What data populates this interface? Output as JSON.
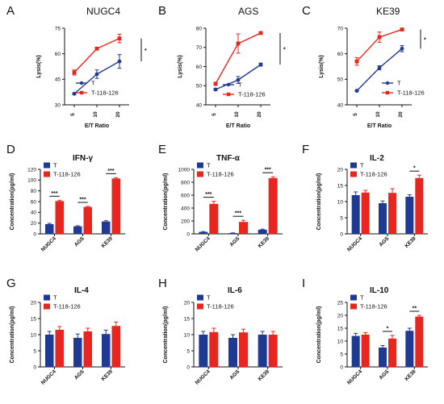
{
  "colors": {
    "T": "#1f3a93",
    "T118": "#e8261f",
    "axis": "#111111"
  },
  "chart_data": [
    {
      "panel": "A",
      "type": "line",
      "title": "NUGC4",
      "ylabel": "Lysis(%)",
      "xlabel": "E/T Ratio",
      "x": [
        "5",
        "10",
        "20"
      ],
      "ylim": [
        30,
        75
      ],
      "yticks": [
        30,
        45,
        60,
        75
      ],
      "series": [
        {
          "name": "T",
          "color": "T",
          "values": [
            36.5,
            48,
            55.5
          ],
          "errors": [
            0.5,
            2.5,
            4
          ]
        },
        {
          "name": "T-118-126",
          "color": "T118",
          "values": [
            49,
            63,
            69
          ],
          "errors": [
            1.5,
            0.8,
            2.5
          ]
        }
      ],
      "sig": [
        {
          "label": "*",
          "between_index": 2
        }
      ],
      "legend": "bottom-right"
    },
    {
      "panel": "B",
      "type": "line",
      "title": "AGS",
      "ylabel": "Lysis(%)",
      "xlabel": "E/T Ratio",
      "x": [
        "5",
        "10",
        "20"
      ],
      "ylim": [
        40,
        80
      ],
      "yticks": [
        40,
        50,
        60,
        70,
        80
      ],
      "series": [
        {
          "name": "T",
          "color": "T",
          "values": [
            48,
            53,
            61
          ],
          "errors": [
            0.5,
            1.8,
            0.8
          ]
        },
        {
          "name": "T-118-126",
          "color": "T118",
          "values": [
            51,
            72,
            77.5
          ],
          "errors": [
            0.8,
            5,
            0.5
          ]
        }
      ],
      "sig": [
        {
          "label": "*",
          "between_index": 2
        }
      ],
      "legend": "bottom-right"
    },
    {
      "panel": "C",
      "type": "line",
      "title": "KE39",
      "ylabel": "Lysis(%)",
      "xlabel": "E/T Ratio",
      "x": [
        "5",
        "10",
        "20"
      ],
      "ylim": [
        40,
        70
      ],
      "yticks": [
        40,
        50,
        60,
        70
      ],
      "series": [
        {
          "name": "T",
          "color": "T",
          "values": [
            45.5,
            54.5,
            62
          ],
          "errors": [
            0.3,
            0.8,
            1.2
          ]
        },
        {
          "name": "T-118-126",
          "color": "T118",
          "values": [
            57,
            66.5,
            69.5
          ],
          "errors": [
            1.5,
            2,
            0.5
          ]
        }
      ],
      "sig": [
        {
          "label": "*",
          "between_index": 2
        }
      ],
      "legend": "bottom-right"
    },
    {
      "panel": "D",
      "type": "bar",
      "title": "IFN-γ",
      "ylabel": "Concentration(pg/ml)",
      "categories": [
        "NUGC4",
        "AGS",
        "KE39"
      ],
      "ylim": [
        0,
        120
      ],
      "yticks": [
        0,
        20,
        40,
        60,
        80,
        100,
        120
      ],
      "series": [
        {
          "name": "T",
          "color": "T",
          "values": [
            18,
            14,
            23
          ],
          "errors": [
            1.5,
            1,
            1.5
          ]
        },
        {
          "name": "T-118-126",
          "color": "T118",
          "values": [
            61,
            50,
            103
          ],
          "errors": [
            1.5,
            1,
            1.5
          ]
        }
      ],
      "sig": [
        "***",
        "***",
        "***"
      ],
      "legend": "top-left"
    },
    {
      "panel": "E",
      "type": "bar",
      "title": "TNF-α",
      "ylabel": "Concentration(pg/ml)",
      "categories": [
        "NUGC4",
        "AGS",
        "KE39"
      ],
      "ylim": [
        0,
        1000
      ],
      "yticks": [
        0,
        200,
        400,
        600,
        800,
        1000
      ],
      "series": [
        {
          "name": "T",
          "color": "T",
          "values": [
            30,
            12,
            65
          ],
          "errors": [
            5,
            3,
            8
          ]
        },
        {
          "name": "T-118-126",
          "color": "T118",
          "values": [
            465,
            185,
            865
          ],
          "errors": [
            40,
            25,
            20
          ]
        }
      ],
      "sig": [
        "***",
        "***",
        "***"
      ],
      "legend": "top-left"
    },
    {
      "panel": "F",
      "type": "bar",
      "title": "IL-2",
      "ylabel": "Concentration(pg/ml)",
      "categories": [
        "NUGC4",
        "AGS",
        "KE39"
      ],
      "ylim": [
        0,
        20
      ],
      "yticks": [
        0,
        5,
        10,
        15,
        20
      ],
      "series": [
        {
          "name": "T",
          "color": "T",
          "values": [
            12,
            9.5,
            11.5
          ],
          "errors": [
            1,
            0.7,
            0.6
          ]
        },
        {
          "name": "T-118-126",
          "color": "T118",
          "values": [
            12.8,
            12.7,
            17.3
          ],
          "errors": [
            0.7,
            1.3,
            0.9
          ]
        }
      ],
      "sig": [
        "",
        "",
        "*"
      ],
      "legend": "top-left"
    },
    {
      "panel": "G",
      "type": "bar",
      "title": "IL-4",
      "ylabel": "Concentration(pg/ml)",
      "categories": [
        "NUGC4",
        "AGS",
        "KE39"
      ],
      "ylim": [
        0,
        20
      ],
      "yticks": [
        0,
        5,
        10,
        15,
        20
      ],
      "series": [
        {
          "name": "T",
          "color": "T",
          "values": [
            10,
            9,
            10.2
          ],
          "errors": [
            1,
            1.2,
            1.2
          ]
        },
        {
          "name": "T-118-126",
          "color": "T118",
          "values": [
            11.5,
            11,
            12.7
          ],
          "errors": [
            1,
            1,
            1.2
          ]
        }
      ],
      "sig": [
        "",
        "",
        ""
      ],
      "legend": "top-left"
    },
    {
      "panel": "H",
      "type": "bar",
      "title": "IL-6",
      "ylabel": "Concentration(pg/ml)",
      "categories": [
        "NUGC4",
        "AGS",
        "KE39"
      ],
      "ylim": [
        0,
        20
      ],
      "yticks": [
        0,
        5,
        10,
        15,
        20
      ],
      "series": [
        {
          "name": "T",
          "color": "T",
          "values": [
            10,
            9,
            10
          ],
          "errors": [
            1,
            1,
            1
          ]
        },
        {
          "name": "T-118-126",
          "color": "T118",
          "values": [
            10.8,
            10.7,
            10
          ],
          "errors": [
            1.2,
            1,
            1
          ]
        }
      ],
      "sig": [
        "",
        "",
        ""
      ],
      "legend": "top-left"
    },
    {
      "panel": "I",
      "type": "bar",
      "title": "IL-10",
      "ylabel": "Concentration(pg/ml)",
      "categories": [
        "NUGC4",
        "AGS",
        "KE39"
      ],
      "ylim": [
        0,
        25
      ],
      "yticks": [
        0,
        5,
        10,
        15,
        20,
        25
      ],
      "series": [
        {
          "name": "T",
          "color": "T",
          "values": [
            12,
            7.5,
            14
          ],
          "errors": [
            1,
            0.8,
            1
          ]
        },
        {
          "name": "T-118-126",
          "color": "T118",
          "values": [
            12.5,
            11,
            19.5
          ],
          "errors": [
            0.8,
            1.2,
            0.5
          ]
        }
      ],
      "sig": [
        "",
        "*",
        "**"
      ],
      "legend": "top-left"
    }
  ]
}
